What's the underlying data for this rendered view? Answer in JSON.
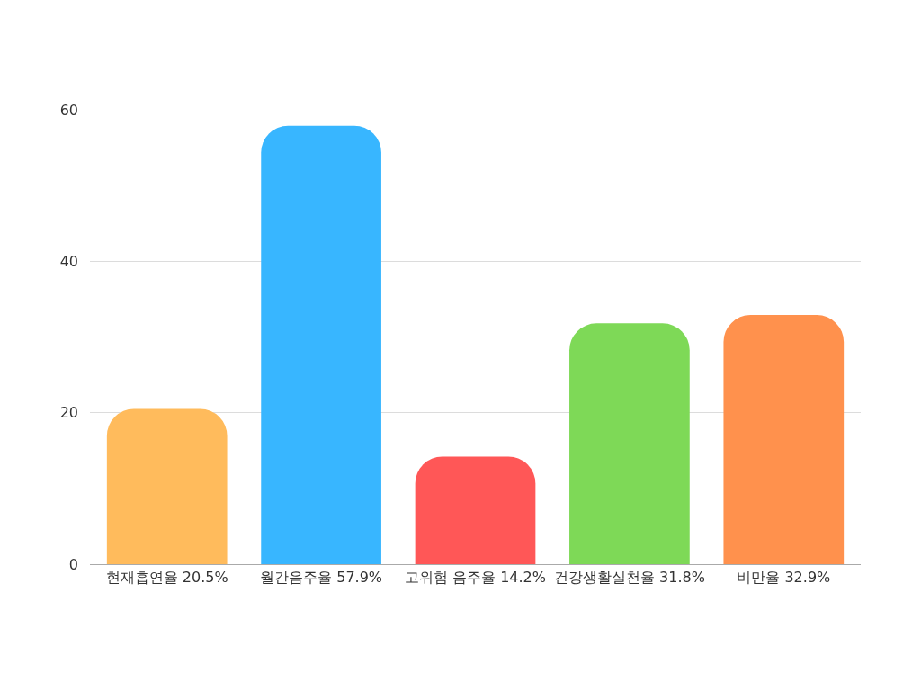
{
  "chart_data": {
    "type": "bar",
    "categories": [
      "현재흡연율 20.5%",
      "월간음주율 57.9%",
      "고위험 음주율 14.2%",
      "건강생활실천율 31.8%",
      "비만율 32.9%"
    ],
    "values": [
      20.5,
      57.9,
      14.2,
      31.8,
      32.9
    ],
    "colors": [
      "#ffbb5c",
      "#38b6ff",
      "#ff5757",
      "#7ed957",
      "#ff914d"
    ],
    "ylim": [
      0,
      60
    ],
    "yticks": [
      0,
      20,
      40,
      60
    ],
    "grid": "y"
  }
}
